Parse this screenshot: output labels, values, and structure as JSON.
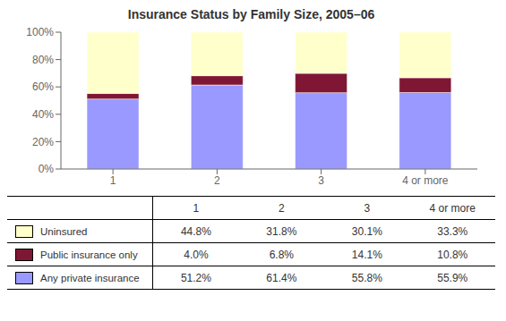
{
  "chart_data": {
    "type": "bar",
    "title": "Insurance Status by Family Size, 2005–06",
    "categories": [
      "1",
      "2",
      "3",
      "4 or more"
    ],
    "stacked": true,
    "grid": false,
    "series": [
      {
        "name": "Any private insurance",
        "color": "#9999ff",
        "values": [
          51.2,
          61.4,
          55.8,
          55.9
        ],
        "value_labels": [
          "51.2%",
          "61.4%",
          "55.8%",
          "55.9%"
        ]
      },
      {
        "name": "Public insurance only",
        "color": "#7f1734",
        "values": [
          4.0,
          6.8,
          14.1,
          10.8
        ],
        "value_labels": [
          "4.0%",
          "6.8%",
          "14.1%",
          "10.8%"
        ]
      },
      {
        "name": "Uninsured",
        "color": "#ffffcc",
        "values": [
          44.8,
          31.8,
          30.1,
          33.3
        ],
        "value_labels": [
          "44.8%",
          "31.8%",
          "30.1%",
          "33.3%"
        ]
      }
    ],
    "ylim": [
      0,
      100
    ],
    "yticks": [
      {
        "value": 0,
        "label": "0%"
      },
      {
        "value": 20,
        "label": "20%"
      },
      {
        "value": 40,
        "label": "40%"
      },
      {
        "value": 60,
        "label": "60%"
      },
      {
        "value": 80,
        "label": "80%"
      },
      {
        "value": 100,
        "label": "100%"
      }
    ]
  }
}
